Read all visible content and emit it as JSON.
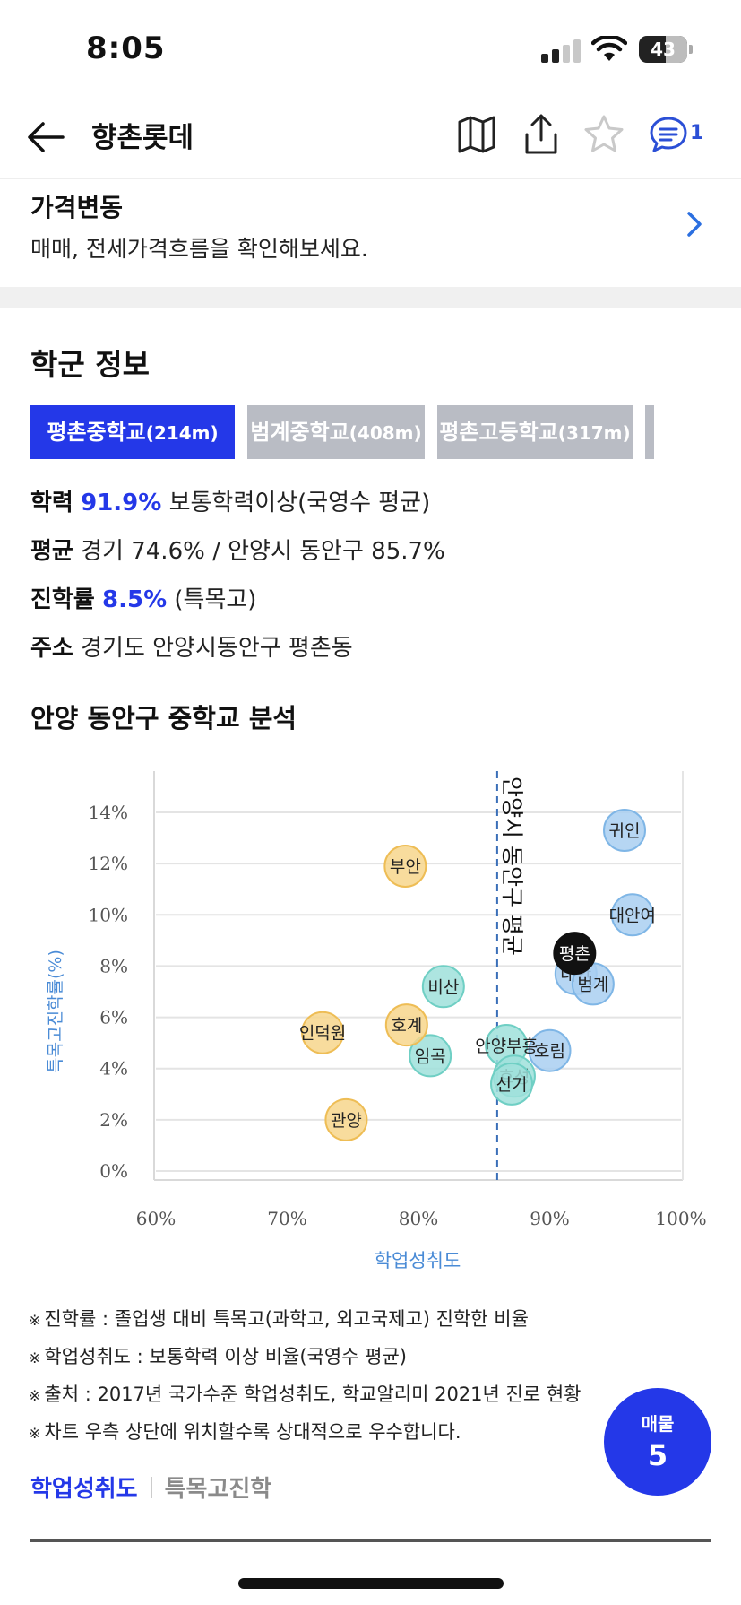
{
  "status": {
    "time": "8:05",
    "battery": "43"
  },
  "nav": {
    "title": "향촌롯데",
    "comment_count": "1"
  },
  "price": {
    "title": "가격변동",
    "subtitle": "매매, 전세가격흐름을 확인해보세요."
  },
  "school": {
    "title": "학군 정보",
    "tabs": [
      {
        "name": "평촌중학교",
        "dist": "(214m)",
        "active": true
      },
      {
        "name": "범계중학교",
        "dist": "(408m)",
        "active": false
      },
      {
        "name": "평촌고등학교",
        "dist": "(317m)",
        "active": false
      }
    ],
    "academic": {
      "key": "학력",
      "value": "91.9%",
      "desc": "보통학력이상(국영수 평균)"
    },
    "average": {
      "key": "평균",
      "desc": "경기 74.6% / 안양시 동안구 85.7%"
    },
    "advancement": {
      "key": "진학률",
      "value": "8.5%",
      "desc": "(특목고)"
    },
    "address": {
      "key": "주소",
      "desc": "경기도 안양시동안구 평촌동"
    }
  },
  "analysis": {
    "title": "안양 동안구 중학교 분석"
  },
  "chart_data": {
    "type": "scatter",
    "xlabel": "학업성취도",
    "ylabel": "특목고진학률(%)",
    "xlim": [
      60,
      100
    ],
    "ylim": [
      0,
      14
    ],
    "x_ticks": [
      "60%",
      "70%",
      "80%",
      "90%",
      "100%"
    ],
    "y_ticks": [
      "0%",
      "2%",
      "4%",
      "6%",
      "8%",
      "10%",
      "12%",
      "14%"
    ],
    "grid": true,
    "reference_line": {
      "x": 86,
      "label": "안양시 동안구 평균"
    },
    "colors": {
      "blue": "#a9cff1",
      "teal": "#9fe1da",
      "yellow": "#f7d68c",
      "black": "#111111"
    },
    "points": [
      {
        "name": "귀인",
        "x": 95.7,
        "y": 13.3,
        "group": "blue"
      },
      {
        "name": "대안여",
        "x": 96.3,
        "y": 10.0,
        "group": "blue"
      },
      {
        "name": "대안",
        "x": 92.0,
        "y": 7.7,
        "group": "blue"
      },
      {
        "name": "범계",
        "x": 93.3,
        "y": 7.3,
        "group": "blue"
      },
      {
        "name": "평촌",
        "x": 91.9,
        "y": 8.5,
        "group": "black"
      },
      {
        "name": "호림",
        "x": 90.0,
        "y": 4.7,
        "group": "blue"
      },
      {
        "name": "안양부흥",
        "x": 86.7,
        "y": 4.9,
        "group": "teal"
      },
      {
        "name": "효성",
        "x": 87.3,
        "y": 3.7,
        "group": "teal"
      },
      {
        "name": "신기",
        "x": 87.1,
        "y": 3.4,
        "group": "teal"
      },
      {
        "name": "비산",
        "x": 81.9,
        "y": 7.2,
        "group": "teal"
      },
      {
        "name": "임곡",
        "x": 80.9,
        "y": 4.5,
        "group": "teal"
      },
      {
        "name": "부안",
        "x": 79.0,
        "y": 11.9,
        "group": "yellow"
      },
      {
        "name": "호계",
        "x": 79.1,
        "y": 5.7,
        "group": "yellow"
      },
      {
        "name": "인덕원",
        "x": 72.7,
        "y": 5.4,
        "group": "yellow"
      },
      {
        "name": "관양",
        "x": 74.5,
        "y": 2.0,
        "group": "yellow"
      }
    ]
  },
  "notes": [
    "진학률 : 졸업생 대비 특목고(과학고, 외고국제고) 진학한 비율",
    "학업성취도 : 보통학력 이상 비율(국영수 평균)",
    "출처 : 2017년 국가수준 학업성취도, 학교알리미 2021년 진로 현황",
    "차트 우측 상단에 위치할수록 상대적으로 우수합니다."
  ],
  "note_mark": "※",
  "fab": {
    "label": "매물",
    "count": "5"
  },
  "bottom_tabs": {
    "active": "학업성취도",
    "inactive": "특목고진학"
  }
}
